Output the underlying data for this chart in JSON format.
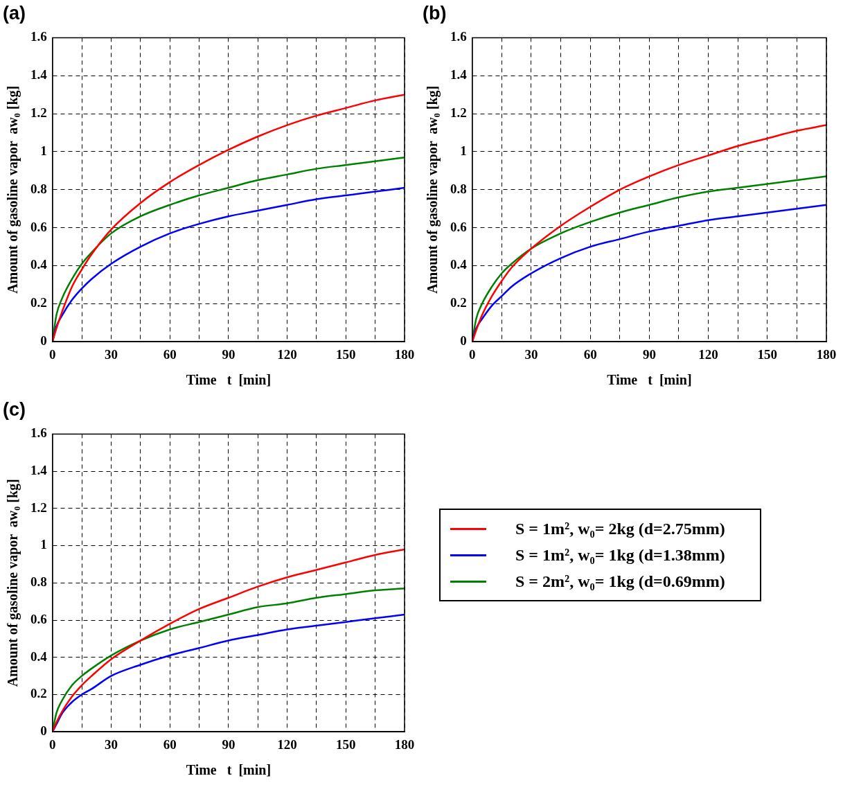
{
  "chart_data": [
    {
      "type": "line",
      "title": "(a)",
      "xlabel": "Time   t  [min]",
      "ylabel": "Amount of gasoline vapor  aw₀ [kg]",
      "xlim": [
        0,
        180
      ],
      "ylim": [
        0,
        1.6
      ],
      "xticks": [
        0,
        {
          "value": 15,
          "label": null
        },
        30,
        {
          "value": 45,
          "label": null
        },
        60,
        {
          "value": 75,
          "label": null
        },
        90,
        {
          "value": 105,
          "label": null
        },
        120,
        {
          "value": 135,
          "label": null
        },
        150,
        {
          "value": 165,
          "label": null
        },
        180
      ],
      "yticks": [
        0,
        0.2,
        0.4,
        0.6,
        0.8,
        1,
        1.2,
        1.4,
        1.6
      ],
      "grid": true,
      "line_style": "solid",
      "marker": "none",
      "legend": false,
      "x": [
        0,
        2,
        5,
        10,
        15,
        20,
        30,
        45,
        60,
        75,
        90,
        105,
        120,
        135,
        150,
        165,
        180
      ],
      "series": [
        {
          "color": "#ff0000",
          "values": [
            0,
            0.07,
            0.16,
            0.29,
            0.38,
            0.46,
            0.59,
            0.73,
            0.84,
            0.93,
            1.01,
            1.08,
            1.14,
            1.19,
            1.23,
            1.27,
            1.3
          ]
        },
        {
          "color": "#0000ff",
          "values": [
            0,
            0.08,
            0.14,
            0.22,
            0.28,
            0.33,
            0.41,
            0.5,
            0.57,
            0.62,
            0.66,
            0.69,
            0.72,
            0.75,
            0.77,
            0.79,
            0.81
          ]
        },
        {
          "color": "#008000",
          "values": [
            0,
            0.14,
            0.23,
            0.33,
            0.41,
            0.47,
            0.57,
            0.66,
            0.72,
            0.77,
            0.81,
            0.85,
            0.88,
            0.91,
            0.93,
            0.95,
            0.97
          ]
        }
      ]
    },
    {
      "type": "line",
      "title": "(b)",
      "xlabel": "Time   t  [min]",
      "ylabel": "Amount of gasoline vapor  aw₀ [kg]",
      "xlim": [
        0,
        180
      ],
      "ylim": [
        0,
        1.6
      ],
      "xticks": [
        0,
        {
          "value": 15,
          "label": null
        },
        30,
        {
          "value": 45,
          "label": null
        },
        60,
        {
          "value": 75,
          "label": null
        },
        90,
        {
          "value": 105,
          "label": null
        },
        120,
        {
          "value": 135,
          "label": null
        },
        150,
        {
          "value": 165,
          "label": null
        },
        180
      ],
      "yticks": [
        0,
        0.2,
        0.4,
        0.6,
        0.8,
        1,
        1.2,
        1.4,
        1.6
      ],
      "grid": true,
      "line_style": "solid",
      "marker": "none",
      "legend": false,
      "x": [
        0,
        2,
        5,
        10,
        15,
        20,
        30,
        45,
        60,
        75,
        90,
        105,
        120,
        135,
        150,
        165,
        180
      ],
      "series": [
        {
          "color": "#ff0000",
          "values": [
            0,
            0.06,
            0.14,
            0.24,
            0.32,
            0.39,
            0.49,
            0.61,
            0.71,
            0.8,
            0.87,
            0.93,
            0.98,
            1.03,
            1.07,
            1.11,
            1.14
          ]
        },
        {
          "color": "#0000ff",
          "values": [
            0,
            0.07,
            0.12,
            0.19,
            0.24,
            0.29,
            0.36,
            0.44,
            0.5,
            0.54,
            0.58,
            0.61,
            0.64,
            0.66,
            0.68,
            0.7,
            0.72
          ]
        },
        {
          "color": "#008000",
          "values": [
            0,
            0.12,
            0.2,
            0.29,
            0.36,
            0.41,
            0.49,
            0.57,
            0.63,
            0.68,
            0.72,
            0.76,
            0.79,
            0.81,
            0.83,
            0.85,
            0.87
          ]
        }
      ]
    },
    {
      "type": "line",
      "title": "(c)",
      "xlabel": "Time   t  [min]",
      "ylabel": "Amount of gasoline vapor  aw₀ [kg]",
      "xlim": [
        0,
        180
      ],
      "ylim": [
        0,
        1.6
      ],
      "xticks": [
        0,
        {
          "value": 15,
          "label": null
        },
        30,
        {
          "value": 45,
          "label": null
        },
        60,
        {
          "value": 75,
          "label": null
        },
        90,
        {
          "value": 105,
          "label": null
        },
        120,
        {
          "value": 135,
          "label": null
        },
        150,
        {
          "value": 165,
          "label": null
        },
        180
      ],
      "yticks": [
        0,
        0.2,
        0.4,
        0.6,
        0.8,
        1,
        1.2,
        1.4,
        1.6
      ],
      "grid": true,
      "line_style": "solid",
      "marker": "none",
      "legend": "right",
      "x": [
        0,
        2,
        5,
        10,
        15,
        20,
        30,
        45,
        60,
        75,
        90,
        105,
        120,
        135,
        150,
        165,
        180
      ],
      "series": [
        {
          "name": "S = 1m², w₀= 2kg (d=2.75mm)",
          "color": "#ff0000",
          "values": [
            0,
            0.05,
            0.11,
            0.19,
            0.25,
            0.3,
            0.39,
            0.49,
            0.58,
            0.66,
            0.72,
            0.78,
            0.83,
            0.87,
            0.91,
            0.95,
            0.98
          ]
        },
        {
          "name": "S = 1m², w₀= 1kg (d=1.38mm)",
          "color": "#0000ff",
          "values": [
            0,
            0.04,
            0.1,
            0.16,
            0.2,
            0.23,
            0.3,
            0.36,
            0.41,
            0.45,
            0.49,
            0.52,
            0.55,
            0.57,
            0.59,
            0.61,
            0.63
          ]
        },
        {
          "name": "S = 2m², w₀= 1kg (d=0.69mm)",
          "color": "#008000",
          "values": [
            0,
            0.1,
            0.17,
            0.25,
            0.3,
            0.34,
            0.41,
            0.49,
            0.55,
            0.59,
            0.63,
            0.67,
            0.69,
            0.72,
            0.74,
            0.76,
            0.77
          ]
        }
      ]
    }
  ]
}
